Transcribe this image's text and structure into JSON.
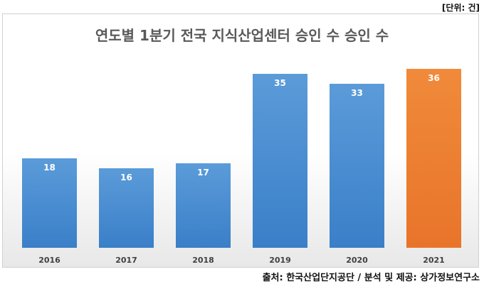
{
  "unit_note": "[단위: 건]",
  "source_note": "출처: 한국산업단지공단 / 분석 및 제공: 상가정보연구소",
  "colors": {
    "bar_default": "#4a8fd6",
    "bar_highlight": "#ed7d31",
    "title": "#595959"
  },
  "chart_data": {
    "type": "bar",
    "title": "연도별 1분기 전국 지식산업센터 승인 수 승인 수",
    "xlabel": "",
    "ylabel": "",
    "categories": [
      "2016",
      "2017",
      "2018",
      "2019",
      "2020",
      "2021"
    ],
    "values": [
      18,
      16,
      17,
      35,
      33,
      36
    ],
    "highlight_category": "2021",
    "ylim": [
      0,
      40
    ],
    "grid": false,
    "legend": "none",
    "data_labels": true
  }
}
